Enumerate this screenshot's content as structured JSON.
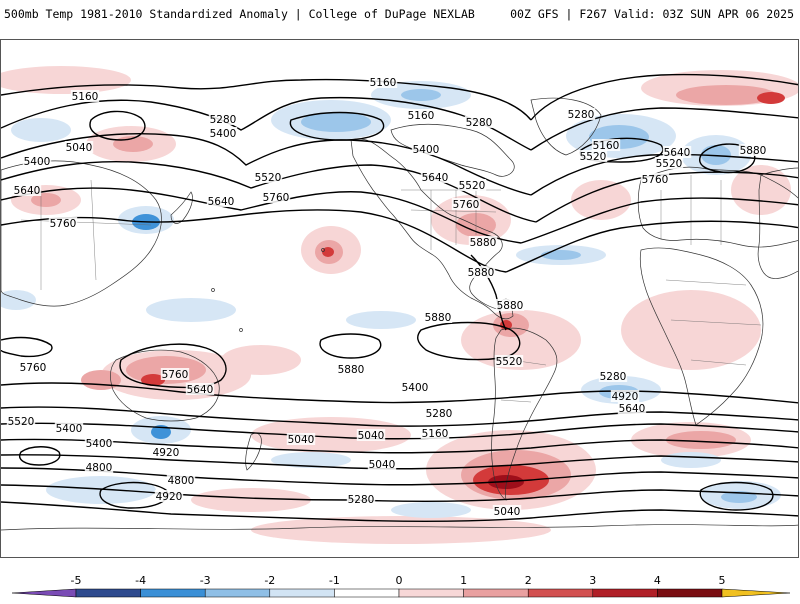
{
  "header": {
    "title": "500mb Temp 1981-2010 Standardized Anomaly | College of DuPage NEXLAB",
    "run_info": "00Z GFS | F267 Valid: 03Z SUN APR 06 2025"
  },
  "contour_labels": [
    "5160",
    "5280",
    "5400",
    "5040",
    "5400",
    "5640",
    "5520",
    "5640",
    "5760",
    "5760",
    "5160",
    "5160",
    "5280",
    "5400",
    "5640",
    "5520",
    "5760",
    "5880",
    "5880",
    "5880",
    "5280",
    "5160",
    "5520",
    "5640",
    "5760",
    "5520",
    "5880",
    "5880",
    "5880",
    "5760",
    "5760",
    "5640",
    "5520",
    "5280",
    "4920",
    "5640",
    "5400",
    "5280",
    "5520",
    "5400",
    "5040",
    "5160",
    "5400",
    "5040",
    "4800",
    "4920",
    "5040",
    "4800",
    "4920",
    "5280",
    "5040"
  ],
  "colorbar": {
    "ticks": [
      "-5",
      "-4",
      "-3",
      "-2",
      "-1",
      "0",
      "1",
      "2",
      "3",
      "4",
      "5"
    ],
    "colors": [
      "#7a4bb5",
      "#2e4a8e",
      "#3a8fd6",
      "#8fbfe6",
      "#d2e4f4",
      "#ffffff",
      "#f7d7d7",
      "#e9a0a0",
      "#d25050",
      "#b01f27",
      "#7a0d12",
      "#f0c020"
    ]
  },
  "anomaly_colors": {
    "warm_light": "#f7d6d6",
    "warm_mid": "#eba6a6",
    "warm_strong": "#d33a3a",
    "warm_extreme": "#9e0e1a",
    "cool_light": "#d6e6f5",
    "cool_mid": "#9cc6ea",
    "cool_strong": "#3f92d8"
  }
}
